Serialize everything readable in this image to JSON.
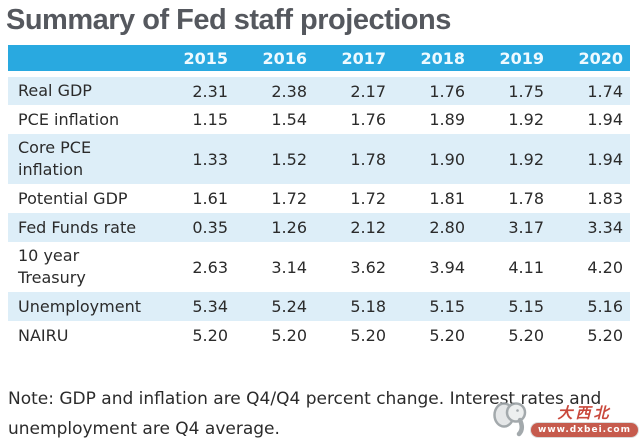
{
  "title": "Summary of Fed staff projections",
  "chart_data": {
    "type": "table",
    "title": "Summary of Fed staff projections",
    "columns": [
      "2015",
      "2016",
      "2017",
      "2018",
      "2019",
      "2020"
    ],
    "rows": [
      {
        "label": "Real GDP",
        "values": [
          "2.31",
          "2.38",
          "2.17",
          "1.76",
          "1.75",
          "1.74"
        ]
      },
      {
        "label": "PCE inflation",
        "values": [
          "1.15",
          "1.54",
          "1.76",
          "1.89",
          "1.92",
          "1.94"
        ]
      },
      {
        "label": "Core PCE\ninflation",
        "values": [
          "1.33",
          "1.52",
          "1.78",
          "1.90",
          "1.92",
          "1.94"
        ]
      },
      {
        "label": "Potential GDP",
        "values": [
          "1.61",
          "1.72",
          "1.72",
          "1.81",
          "1.78",
          "1.83"
        ]
      },
      {
        "label": "Fed Funds rate",
        "values": [
          "0.35",
          "1.26",
          "2.12",
          "2.80",
          "3.17",
          "3.34"
        ]
      },
      {
        "label": "10 year\nTreasury",
        "values": [
          "2.63",
          "3.14",
          "3.62",
          "3.94",
          "4.11",
          "4.20"
        ]
      },
      {
        "label": "Unemployment",
        "values": [
          "5.34",
          "5.24",
          "5.18",
          "5.15",
          "5.15",
          "5.16"
        ]
      },
      {
        "label": "NAIRU",
        "values": [
          "5.20",
          "5.20",
          "5.20",
          "5.20",
          "5.20",
          "5.20"
        ]
      }
    ],
    "note": "Note: GDP and inflation are Q4/Q4 percent change. Interest rates and\nunemployment are Q4 average.",
    "layout": {
      "header_position": "top",
      "striped": true,
      "stripe_start_row": 0
    }
  },
  "colors": {
    "header_bg": "#29a9e0",
    "header_text": "#eefaff",
    "stripe_bg": "#ddeef8",
    "title_text": "#55585e",
    "body_text": "#2b2b2b",
    "watermark_red": "#c43527"
  },
  "watermark": {
    "icon": "elephant-icon",
    "site_name": "大西北",
    "url": "www.dxbei.com"
  }
}
